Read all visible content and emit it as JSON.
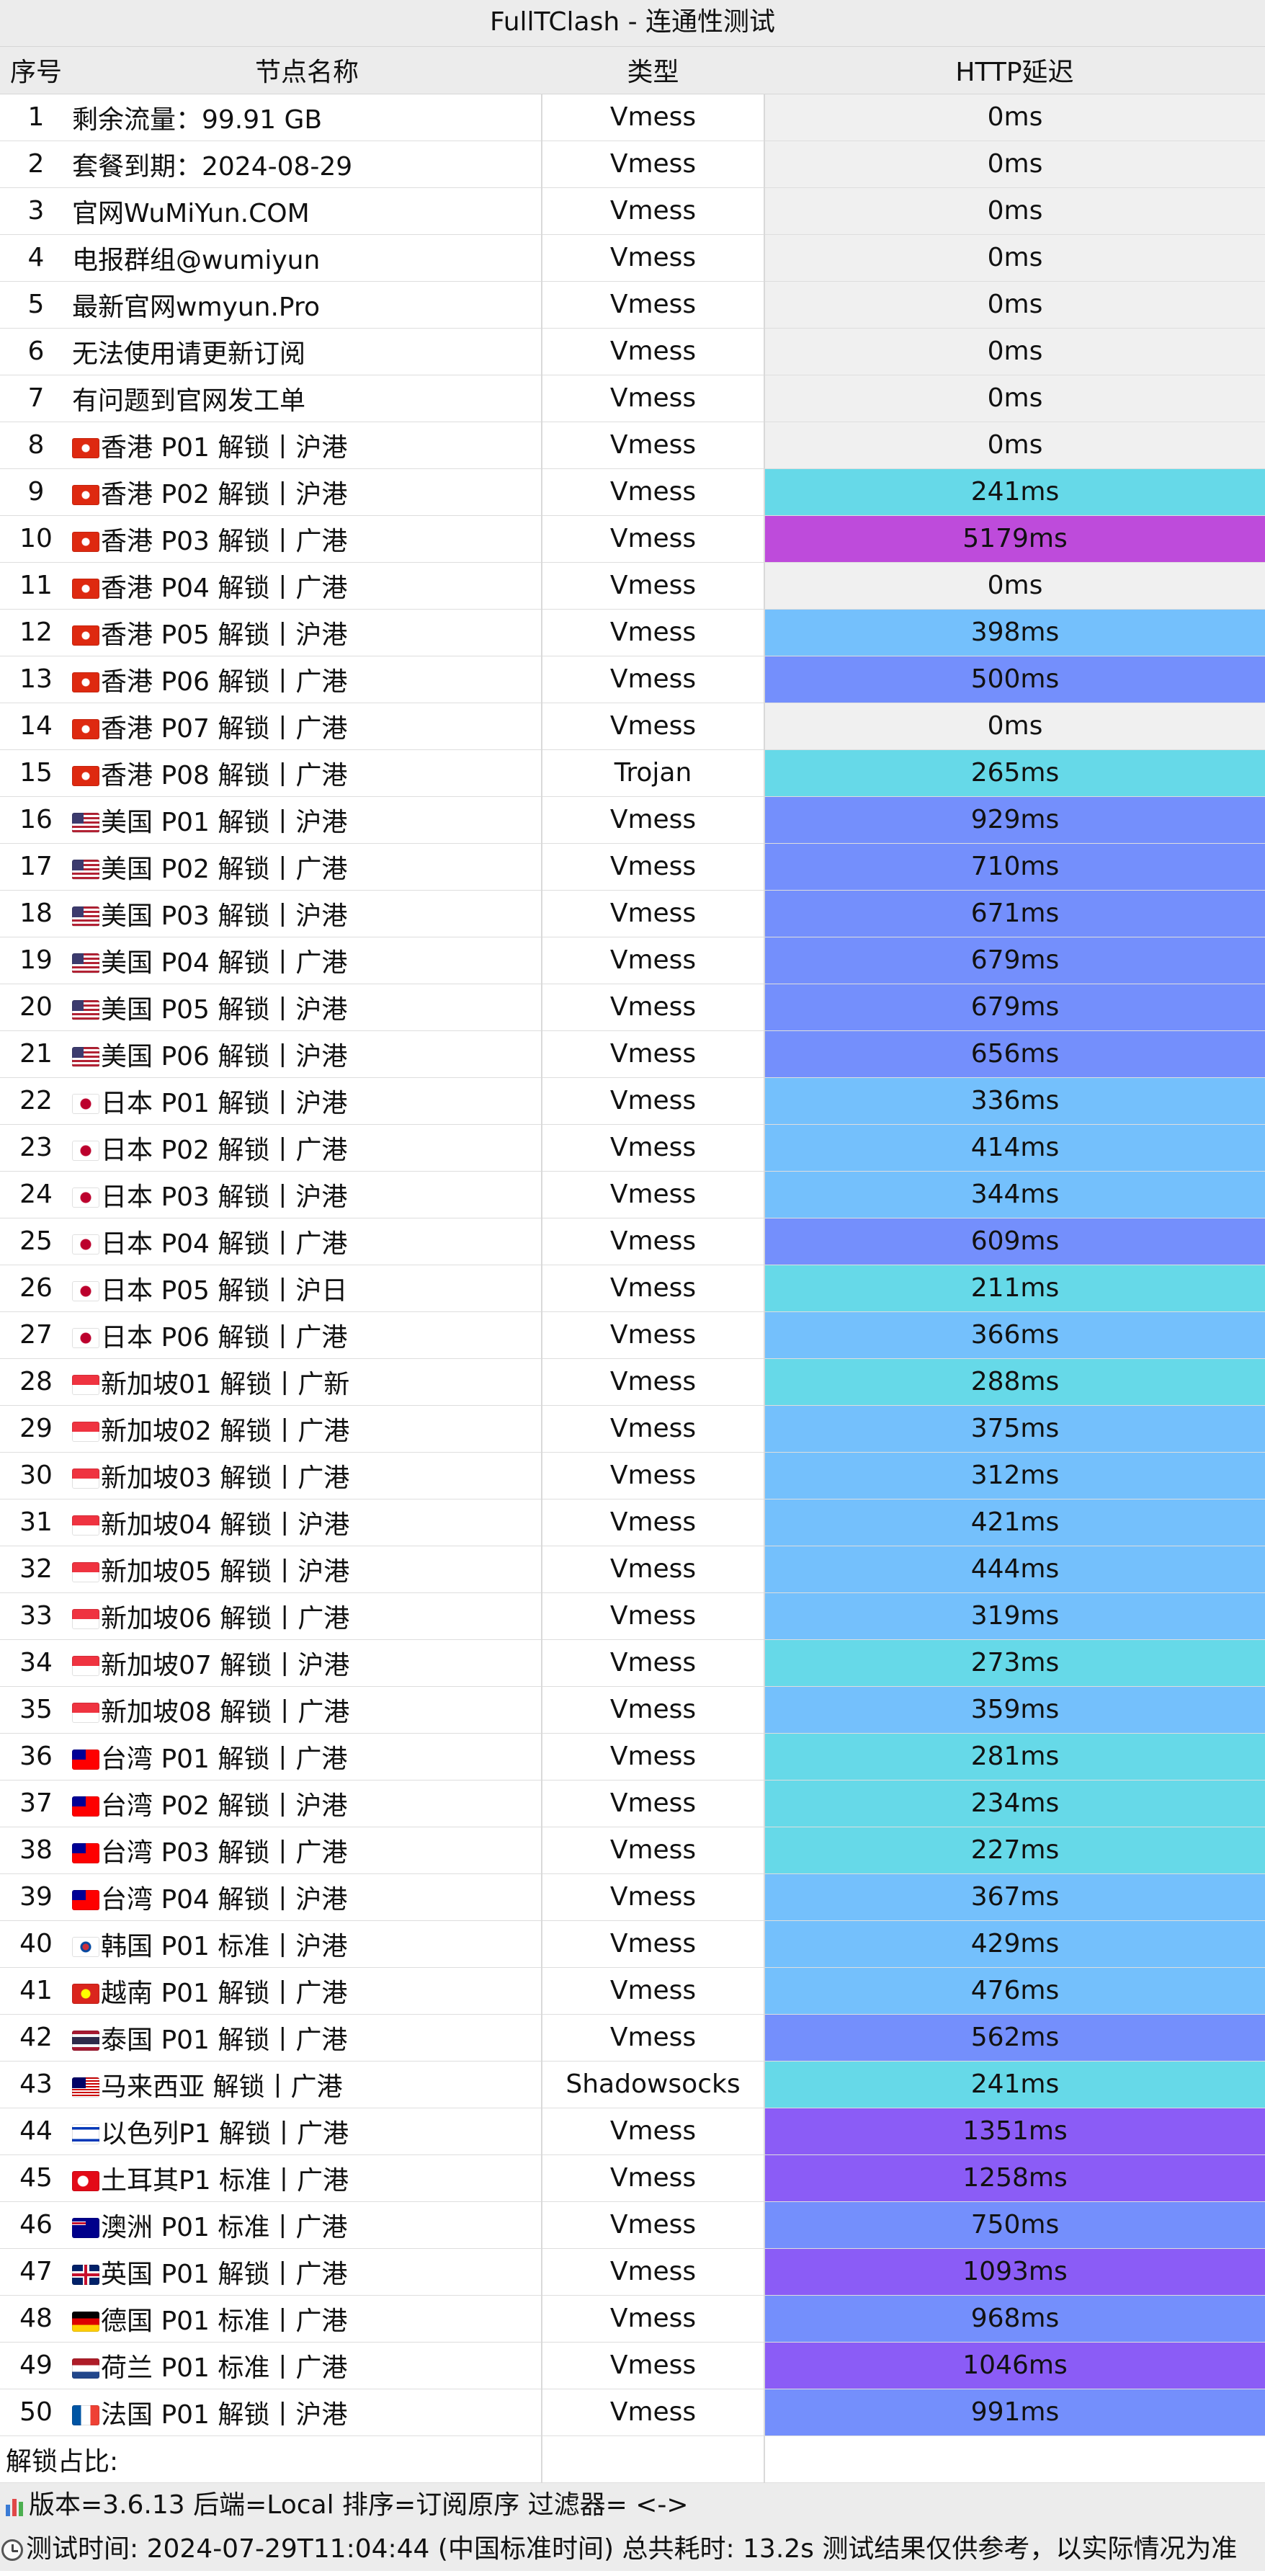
{
  "title": "FullTClash - 连通性测试",
  "headers": {
    "index": "序号",
    "name": "节点名称",
    "type": "类型",
    "latency": "HTTP延迟"
  },
  "colors": {
    "latency_zero": "#f0f0f0",
    "latency_200_300": "#66d9e8",
    "latency_300_500": "#74c0fc",
    "latency_500_1000": "#748ffc",
    "latency_1000_5000": "#8b5cf6",
    "latency_over_5000": "#be4bdb"
  },
  "rows": [
    {
      "index": "1",
      "flag": "",
      "name": "剩余流量：99.91 GB",
      "type": "Vmess",
      "latency": "0ms",
      "latency_ms": 0
    },
    {
      "index": "2",
      "flag": "",
      "name": "套餐到期：2024-08-29",
      "type": "Vmess",
      "latency": "0ms",
      "latency_ms": 0
    },
    {
      "index": "3",
      "flag": "",
      "name": "官网WuMiYun.COM",
      "type": "Vmess",
      "latency": "0ms",
      "latency_ms": 0
    },
    {
      "index": "4",
      "flag": "",
      "name": "电报群组@wumiyun",
      "type": "Vmess",
      "latency": "0ms",
      "latency_ms": 0
    },
    {
      "index": "5",
      "flag": "",
      "name": "最新官网wmyun.Pro",
      "type": "Vmess",
      "latency": "0ms",
      "latency_ms": 0
    },
    {
      "index": "6",
      "flag": "",
      "name": "无法使用请更新订阅",
      "type": "Vmess",
      "latency": "0ms",
      "latency_ms": 0
    },
    {
      "index": "7",
      "flag": "",
      "name": "有问题到官网发工单",
      "type": "Vmess",
      "latency": "0ms",
      "latency_ms": 0
    },
    {
      "index": "8",
      "flag": "hk",
      "name": "香港 P01 解锁丨沪港",
      "type": "Vmess",
      "latency": "0ms",
      "latency_ms": 0
    },
    {
      "index": "9",
      "flag": "hk",
      "name": "香港 P02 解锁丨沪港",
      "type": "Vmess",
      "latency": "241ms",
      "latency_ms": 241
    },
    {
      "index": "10",
      "flag": "hk",
      "name": "香港 P03 解锁丨广港",
      "type": "Vmess",
      "latency": "5179ms",
      "latency_ms": 5179
    },
    {
      "index": "11",
      "flag": "hk",
      "name": "香港 P04 解锁丨广港",
      "type": "Vmess",
      "latency": "0ms",
      "latency_ms": 0
    },
    {
      "index": "12",
      "flag": "hk",
      "name": "香港 P05 解锁丨沪港",
      "type": "Vmess",
      "latency": "398ms",
      "latency_ms": 398
    },
    {
      "index": "13",
      "flag": "hk",
      "name": "香港 P06 解锁丨广港",
      "type": "Vmess",
      "latency": "500ms",
      "latency_ms": 500
    },
    {
      "index": "14",
      "flag": "hk",
      "name": "香港 P07 解锁丨广港",
      "type": "Vmess",
      "latency": "0ms",
      "latency_ms": 0
    },
    {
      "index": "15",
      "flag": "hk",
      "name": "香港 P08 解锁丨广港",
      "type": "Trojan",
      "latency": "265ms",
      "latency_ms": 265
    },
    {
      "index": "16",
      "flag": "us",
      "name": "美国 P01 解锁丨沪港",
      "type": "Vmess",
      "latency": "929ms",
      "latency_ms": 929
    },
    {
      "index": "17",
      "flag": "us",
      "name": "美国 P02 解锁丨广港",
      "type": "Vmess",
      "latency": "710ms",
      "latency_ms": 710
    },
    {
      "index": "18",
      "flag": "us",
      "name": "美国 P03 解锁丨沪港",
      "type": "Vmess",
      "latency": "671ms",
      "latency_ms": 671
    },
    {
      "index": "19",
      "flag": "us",
      "name": "美国 P04 解锁丨广港",
      "type": "Vmess",
      "latency": "679ms",
      "latency_ms": 679
    },
    {
      "index": "20",
      "flag": "us",
      "name": "美国 P05 解锁丨沪港",
      "type": "Vmess",
      "latency": "679ms",
      "latency_ms": 679
    },
    {
      "index": "21",
      "flag": "us",
      "name": "美国 P06 解锁丨沪港",
      "type": "Vmess",
      "latency": "656ms",
      "latency_ms": 656
    },
    {
      "index": "22",
      "flag": "jp",
      "name": "日本 P01 解锁丨沪港",
      "type": "Vmess",
      "latency": "336ms",
      "latency_ms": 336
    },
    {
      "index": "23",
      "flag": "jp",
      "name": "日本 P02 解锁丨广港",
      "type": "Vmess",
      "latency": "414ms",
      "latency_ms": 414
    },
    {
      "index": "24",
      "flag": "jp",
      "name": "日本 P03 解锁丨沪港",
      "type": "Vmess",
      "latency": "344ms",
      "latency_ms": 344
    },
    {
      "index": "25",
      "flag": "jp",
      "name": "日本 P04 解锁丨广港",
      "type": "Vmess",
      "latency": "609ms",
      "latency_ms": 609
    },
    {
      "index": "26",
      "flag": "jp",
      "name": "日本 P05 解锁丨沪日",
      "type": "Vmess",
      "latency": "211ms",
      "latency_ms": 211
    },
    {
      "index": "27",
      "flag": "jp",
      "name": "日本 P06 解锁丨广港",
      "type": "Vmess",
      "latency": "366ms",
      "latency_ms": 366
    },
    {
      "index": "28",
      "flag": "sg",
      "name": "新加坡01 解锁丨广新",
      "type": "Vmess",
      "latency": "288ms",
      "latency_ms": 288
    },
    {
      "index": "29",
      "flag": "sg",
      "name": "新加坡02 解锁丨广港",
      "type": "Vmess",
      "latency": "375ms",
      "latency_ms": 375
    },
    {
      "index": "30",
      "flag": "sg",
      "name": "新加坡03 解锁丨广港",
      "type": "Vmess",
      "latency": "312ms",
      "latency_ms": 312
    },
    {
      "index": "31",
      "flag": "sg",
      "name": "新加坡04 解锁丨沪港",
      "type": "Vmess",
      "latency": "421ms",
      "latency_ms": 421
    },
    {
      "index": "32",
      "flag": "sg",
      "name": "新加坡05 解锁丨沪港",
      "type": "Vmess",
      "latency": "444ms",
      "latency_ms": 444
    },
    {
      "index": "33",
      "flag": "sg",
      "name": "新加坡06 解锁丨广港",
      "type": "Vmess",
      "latency": "319ms",
      "latency_ms": 319
    },
    {
      "index": "34",
      "flag": "sg",
      "name": "新加坡07 解锁丨沪港",
      "type": "Vmess",
      "latency": "273ms",
      "latency_ms": 273
    },
    {
      "index": "35",
      "flag": "sg",
      "name": "新加坡08 解锁丨广港",
      "type": "Vmess",
      "latency": "359ms",
      "latency_ms": 359
    },
    {
      "index": "36",
      "flag": "tw",
      "name": "台湾 P01 解锁丨广港",
      "type": "Vmess",
      "latency": "281ms",
      "latency_ms": 281
    },
    {
      "index": "37",
      "flag": "tw",
      "name": "台湾 P02 解锁丨沪港",
      "type": "Vmess",
      "latency": "234ms",
      "latency_ms": 234
    },
    {
      "index": "38",
      "flag": "tw",
      "name": "台湾 P03 解锁丨广港",
      "type": "Vmess",
      "latency": "227ms",
      "latency_ms": 227
    },
    {
      "index": "39",
      "flag": "tw",
      "name": "台湾 P04 解锁丨沪港",
      "type": "Vmess",
      "latency": "367ms",
      "latency_ms": 367
    },
    {
      "index": "40",
      "flag": "kr",
      "name": "韩国 P01 标准丨沪港",
      "type": "Vmess",
      "latency": "429ms",
      "latency_ms": 429
    },
    {
      "index": "41",
      "flag": "vn",
      "name": "越南 P01 解锁丨广港",
      "type": "Vmess",
      "latency": "476ms",
      "latency_ms": 476
    },
    {
      "index": "42",
      "flag": "th",
      "name": "泰国 P01 解锁丨广港",
      "type": "Vmess",
      "latency": "562ms",
      "latency_ms": 562
    },
    {
      "index": "43",
      "flag": "my",
      "name": "马来西亚 解锁丨广港",
      "type": "Shadowsocks",
      "latency": "241ms",
      "latency_ms": 241
    },
    {
      "index": "44",
      "flag": "il",
      "name": "以色列P1 解锁丨广港",
      "type": "Vmess",
      "latency": "1351ms",
      "latency_ms": 1351
    },
    {
      "index": "45",
      "flag": "tr",
      "name": "土耳其P1 标准丨广港",
      "type": "Vmess",
      "latency": "1258ms",
      "latency_ms": 1258
    },
    {
      "index": "46",
      "flag": "au",
      "name": "澳洲 P01 标准丨广港",
      "type": "Vmess",
      "latency": "750ms",
      "latency_ms": 750
    },
    {
      "index": "47",
      "flag": "gb",
      "name": "英国 P01 解锁丨广港",
      "type": "Vmess",
      "latency": "1093ms",
      "latency_ms": 1093
    },
    {
      "index": "48",
      "flag": "de",
      "name": "德国 P01 标准丨广港",
      "type": "Vmess",
      "latency": "968ms",
      "latency_ms": 968
    },
    {
      "index": "49",
      "flag": "nl",
      "name": "荷兰 P01 标准丨广港",
      "type": "Vmess",
      "latency": "1046ms",
      "latency_ms": 1046
    },
    {
      "index": "50",
      "flag": "fr",
      "name": "法国 P01 解锁丨沪港",
      "type": "Vmess",
      "latency": "991ms",
      "latency_ms": 991
    }
  ],
  "unlock_ratio_label": "解锁占比:",
  "unlock_ratio_value": "",
  "footer": {
    "version_line": "版本=3.6.13  后端=Local  排序=订阅原序  过滤器= <->",
    "time_line": "测试时间: 2024-07-29T11:04:44 (中国标准时间) 总共耗时: 13.2s 测试结果仅供参考，以实际情况为准"
  }
}
